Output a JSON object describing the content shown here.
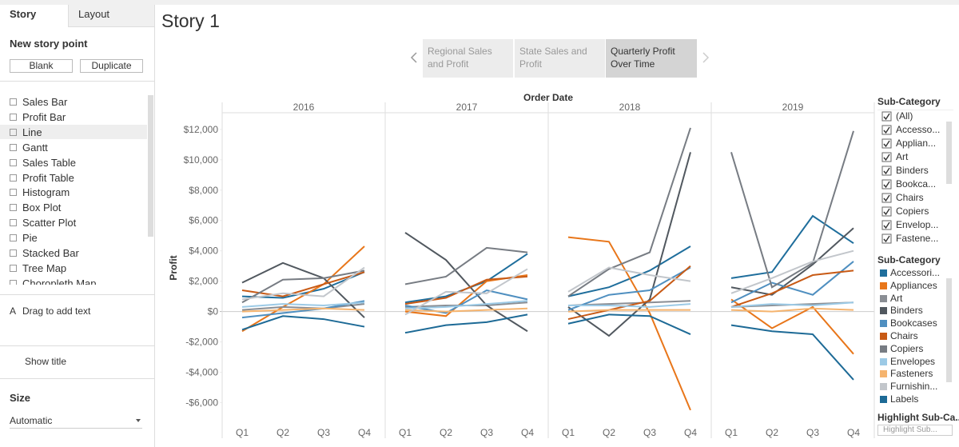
{
  "left_panel": {
    "tabs": [
      "Story",
      "Layout"
    ],
    "new_story_point": "New story point",
    "buttons": [
      "Blank",
      "Duplicate"
    ],
    "sheets": [
      "Sales Bar",
      "Profit Bar",
      "Line",
      "Gantt",
      "Sales Table",
      "Profit Table",
      "Histogram",
      "Box Plot",
      "Scatter Plot",
      "Pie",
      "Stacked Bar",
      "Tree Map",
      "Choropleth Map"
    ],
    "add_text_icon": "A",
    "add_text": "Drag to add text",
    "show_title": "Show title",
    "size_heading": "Size",
    "size_value": "Automatic"
  },
  "story": {
    "title": "Story 1",
    "points": [
      "Regional Sales and Profit",
      "State Sales and Profit",
      "Quarterly Profit Over Time"
    ]
  },
  "chart_data": {
    "type": "line",
    "header": "Order Date",
    "y_label": "Profit",
    "columns": [
      "2016",
      "2017",
      "2018",
      "2019"
    ],
    "categories": [
      "Q1",
      "Q2",
      "Q3",
      "Q4"
    ],
    "ylim": [
      -7400,
      13100
    ],
    "yticks": [
      {
        "value": -6000,
        "label": "-$6,000"
      },
      {
        "value": -4000,
        "label": "-$4,000"
      },
      {
        "value": -2000,
        "label": "-$2,000"
      },
      {
        "value": 0,
        "label": "$0"
      },
      {
        "value": 2000,
        "label": "$2,000"
      },
      {
        "value": 4000,
        "label": "$4,000"
      },
      {
        "value": 6000,
        "label": "$6,000"
      },
      {
        "value": 8000,
        "label": "$8,000"
      },
      {
        "value": 10000,
        "label": "$10,000"
      },
      {
        "value": 12000,
        "label": "$12,000"
      }
    ],
    "legend_title": "Sub-Category",
    "series": [
      {
        "name": "Accessori...",
        "color": "#1f6e9c",
        "values": [
          [
            1000,
            900,
            1500,
            2600
          ],
          [
            600,
            1000,
            2000,
            3800
          ],
          [
            1000,
            1600,
            2700,
            4300
          ],
          [
            2200,
            2600,
            6300,
            4500
          ]
        ]
      },
      {
        "name": "Appliances",
        "color": "#e8761a",
        "values": [
          [
            -1300,
            300,
            1800,
            4300
          ],
          [
            0,
            -300,
            2000,
            2400
          ],
          [
            4900,
            4600,
            -100,
            -6500
          ],
          [
            800,
            -1100,
            300,
            -2800
          ]
        ]
      },
      {
        "name": "Art",
        "color": "#8a8e94",
        "values": [
          [
            100,
            300,
            200,
            500
          ],
          [
            300,
            400,
            400,
            600
          ],
          [
            400,
            500,
            600,
            700
          ],
          [
            300,
            400,
            500,
            600
          ]
        ]
      },
      {
        "name": "Binders",
        "color": "#51585f",
        "values": [
          [
            1900,
            3200,
            2200,
            -400
          ],
          [
            5200,
            3400,
            400,
            -1300
          ],
          [
            300,
            -1600,
            800,
            10500
          ],
          [
            1600,
            1100,
            3100,
            5500
          ]
        ]
      },
      {
        "name": "Bookcases",
        "color": "#4f8fc0",
        "values": [
          [
            -400,
            -100,
            200,
            700
          ],
          [
            400,
            -100,
            1400,
            800
          ],
          [
            100,
            1100,
            1400,
            2900
          ],
          [
            600,
            1900,
            1100,
            3300
          ]
        ]
      },
      {
        "name": "Chairs",
        "color": "#c85a15",
        "values": [
          [
            1400,
            1000,
            1800,
            2600
          ],
          [
            500,
            900,
            2100,
            2300
          ],
          [
            -500,
            100,
            700,
            3000
          ],
          [
            300,
            1200,
            2400,
            2700
          ]
        ]
      },
      {
        "name": "Copiers",
        "color": "#777c83",
        "values": [
          [
            600,
            2100,
            2200,
            2700
          ],
          [
            1800,
            2300,
            4200,
            3900
          ],
          [
            1000,
            2800,
            3900,
            12100
          ],
          [
            10500,
            1600,
            3200,
            11900
          ]
        ]
      },
      {
        "name": "Envelopes",
        "color": "#9ccae6",
        "values": [
          [
            300,
            500,
            400,
            600
          ],
          [
            200,
            300,
            500,
            700
          ],
          [
            400,
            400,
            300,
            500
          ],
          [
            300,
            500,
            400,
            600
          ]
        ]
      },
      {
        "name": "Fasteners",
        "color": "#f5b46f",
        "values": [
          [
            0,
            100,
            200,
            100
          ],
          [
            100,
            0,
            100,
            200
          ],
          [
            0,
            100,
            100,
            100
          ],
          [
            100,
            0,
            200,
            100
          ]
        ]
      },
      {
        "name": "Furnishin...",
        "color": "#c2c6cb",
        "values": [
          [
            800,
            1200,
            1000,
            2900
          ],
          [
            -200,
            1300,
            1200,
            2800
          ],
          [
            1300,
            2900,
            2400,
            2000
          ],
          [
            1200,
            2200,
            3300,
            4000
          ]
        ]
      },
      {
        "name": "Labels",
        "color": "#1d6a96",
        "values": [
          [
            -1200,
            -300,
            -500,
            -1000
          ],
          [
            -1400,
            -900,
            -700,
            -200
          ],
          [
            -800,
            -200,
            -300,
            -1500
          ],
          [
            -900,
            -1300,
            -1500,
            -4500
          ]
        ]
      }
    ]
  },
  "filter": {
    "title": "Sub-Category",
    "items": [
      "(All)",
      "Accesso...",
      "Applian...",
      "Art",
      "Binders",
      "Bookca...",
      "Chairs",
      "Copiers",
      "Envelop...",
      "Fastene..."
    ]
  },
  "highlight": {
    "title": "Highlight Sub-Ca..",
    "placeholder": "Highlight Sub..."
  }
}
